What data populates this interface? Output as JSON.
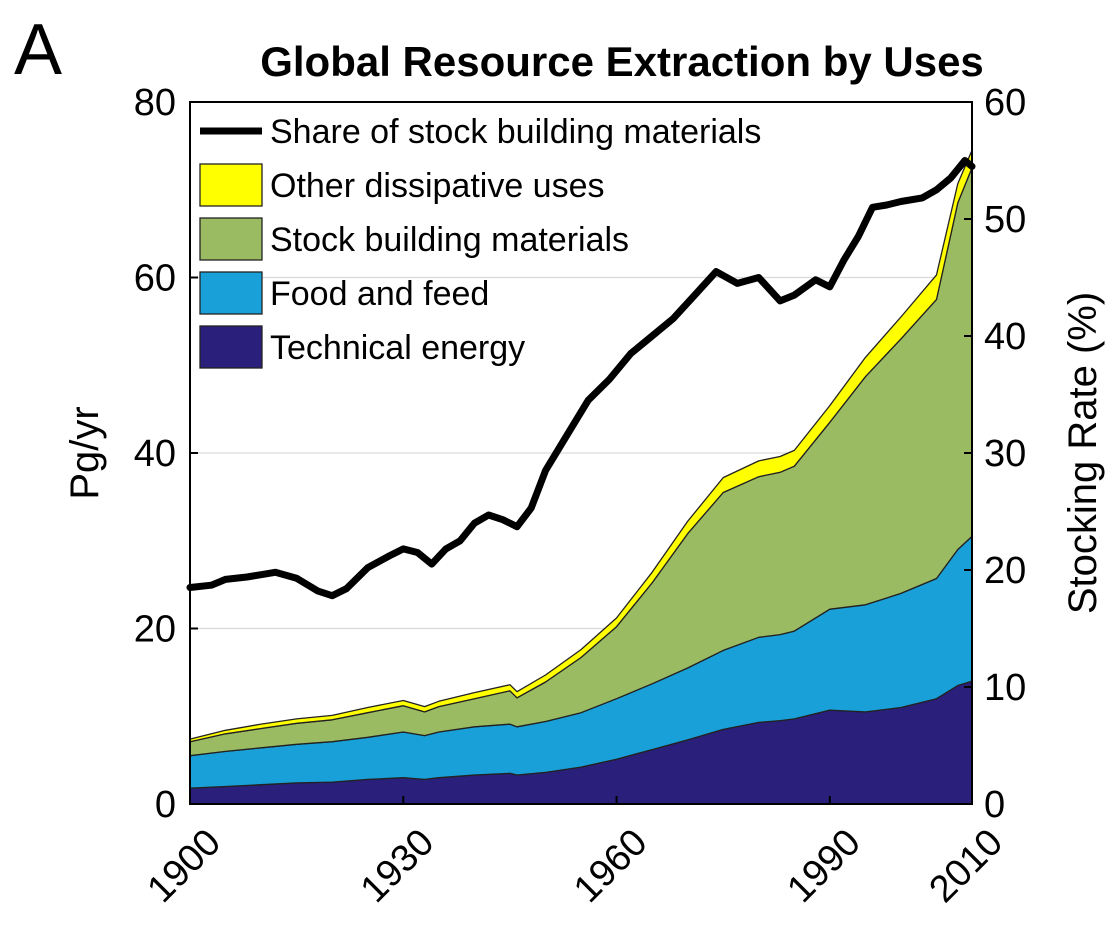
{
  "panel_label": "A",
  "chart_data": {
    "type": "area",
    "title": "Global Resource Extraction by Uses",
    "xlabel": "",
    "ylabel": "Pg/yr",
    "ylabel_right": "Stocking Rate (%)",
    "xlim": [
      1900,
      2010
    ],
    "ylim": [
      0,
      80
    ],
    "ylim_right": [
      0,
      60
    ],
    "xticks": [
      "1900",
      "1930",
      "1960",
      "1990",
      "2010"
    ],
    "yticks": [
      "0",
      "20",
      "40",
      "60",
      "80"
    ],
    "yticks_right": [
      "0",
      "10",
      "20",
      "30",
      "40",
      "50",
      "60"
    ],
    "grid": "horizontal",
    "legend_position": "top-left",
    "stack_order": [
      "Technical energy",
      "Food and feed",
      "Stock building materials",
      "Other dissipative uses"
    ],
    "x": [
      1900,
      1905,
      1910,
      1915,
      1920,
      1925,
      1930,
      1933,
      1935,
      1940,
      1945,
      1946,
      1950,
      1955,
      1960,
      1965,
      1970,
      1975,
      1980,
      1983,
      1985,
      1990,
      1995,
      2000,
      2005,
      2008,
      2010
    ],
    "series": [
      {
        "name": "Technical energy",
        "color": "#2a1f7a",
        "values": [
          1.8,
          2.0,
          2.2,
          2.4,
          2.5,
          2.8,
          3.0,
          2.8,
          3.0,
          3.3,
          3.5,
          3.3,
          3.6,
          4.2,
          5.1,
          6.2,
          7.3,
          8.5,
          9.3,
          9.5,
          9.7,
          10.7,
          10.5,
          11.0,
          12.0,
          13.5,
          14.0
        ]
      },
      {
        "name": "Food and feed",
        "color": "#1aa0d8",
        "values": [
          3.7,
          4.0,
          4.2,
          4.4,
          4.6,
          4.8,
          5.2,
          5.0,
          5.2,
          5.5,
          5.6,
          5.5,
          5.8,
          6.2,
          6.9,
          7.5,
          8.2,
          9.0,
          9.7,
          9.8,
          10.0,
          11.5,
          12.2,
          13.0,
          13.7,
          15.5,
          16.5
        ]
      },
      {
        "name": "Stock building materials",
        "color": "#9bbb62",
        "values": [
          1.6,
          2.0,
          2.2,
          2.4,
          2.5,
          2.8,
          3.0,
          2.7,
          2.9,
          3.2,
          3.8,
          3.3,
          4.5,
          6.3,
          8.2,
          11.5,
          15.3,
          18.0,
          18.3,
          18.5,
          18.8,
          21.3,
          26.0,
          29.0,
          31.8,
          39.5,
          42.0
        ]
      },
      {
        "name": "Other dissipative uses",
        "color": "#ffff00",
        "values": [
          0.3,
          0.4,
          0.5,
          0.5,
          0.5,
          0.6,
          0.6,
          0.6,
          0.6,
          0.7,
          0.7,
          0.7,
          0.8,
          0.9,
          1.0,
          1.2,
          1.4,
          1.7,
          1.8,
          1.8,
          1.8,
          1.9,
          2.2,
          2.5,
          2.8,
          2.2,
          2.0
        ]
      },
      {
        "name": "Share of stock building materials",
        "axis": "right",
        "color": "#000000",
        "x": [
          1900,
          1903,
          1905,
          1908,
          1910,
          1912,
          1915,
          1918,
          1920,
          1922,
          1925,
          1928,
          1930,
          1932,
          1934,
          1936,
          1938,
          1940,
          1942,
          1944,
          1946,
          1948,
          1950,
          1953,
          1956,
          1959,
          1962,
          1965,
          1968,
          1971,
          1974,
          1977,
          1980,
          1983,
          1985,
          1988,
          1990,
          1992,
          1994,
          1996,
          1998,
          2000,
          2003,
          2005,
          2007,
          2009,
          2010
        ],
        "values": [
          18.5,
          18.7,
          19.2,
          19.4,
          19.6,
          19.8,
          19.3,
          18.2,
          17.8,
          18.4,
          20.2,
          21.2,
          21.8,
          21.5,
          20.5,
          21.8,
          22.5,
          24.0,
          24.7,
          24.3,
          23.7,
          25.3,
          28.5,
          31.5,
          34.5,
          36.3,
          38.5,
          40.0,
          41.5,
          43.5,
          45.5,
          44.5,
          45.0,
          43.0,
          43.5,
          44.8,
          44.2,
          46.5,
          48.5,
          51.0,
          51.2,
          51.5,
          51.8,
          52.5,
          53.5,
          55.0,
          54.5
        ]
      }
    ]
  }
}
